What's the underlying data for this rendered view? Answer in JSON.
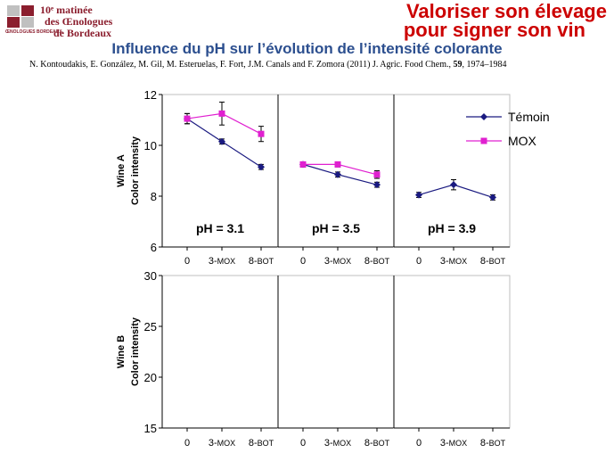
{
  "logo": {
    "line1": "10ᵉ matinée",
    "line2": "des Œnologues",
    "line3": "de Bordeaux",
    "sub": "ŒNOLOGUES BORDEAUX"
  },
  "banner": {
    "line1": "Valoriser son élevage",
    "line2": "pour signer son vin"
  },
  "title": "Influence du pH sur l’évolution de l’intensité colorante",
  "citation": "N. Kontoudakis, E. González, M. Gil, M. Esteruelas, F. Fort, J.M. Canals and F. Zomora (2011) J. Agric. Food Chem., 59, 1974–1984",
  "colors": {
    "temoin": "#1a1a80",
    "mox": "#e020d0"
  },
  "chart_data": [
    {
      "type": "line",
      "row": "Wine A",
      "ylabel_line1": "Wine A",
      "ylabel_line2": "Color intensity",
      "ylim": [
        6,
        12
      ],
      "yticks": [
        6,
        8,
        10,
        12
      ],
      "categories": [
        "0",
        "3-MOX",
        "8-BOT"
      ],
      "legend": [
        "Témoin",
        "MOX"
      ],
      "panels": [
        {
          "label": "pH = 3.1",
          "series": [
            {
              "name": "Témoin",
              "values": [
                11.05,
                10.15,
                9.15
              ],
              "errors": [
                0.2,
                0.1,
                0.1
              ]
            },
            {
              "name": "MOX",
              "values": [
                11.05,
                11.25,
                10.45
              ],
              "errors": [
                0.2,
                0.45,
                0.3
              ]
            }
          ]
        },
        {
          "label": "pH = 3.5",
          "series": [
            {
              "name": "Témoin",
              "values": [
                9.25,
                8.85,
                8.45
              ],
              "errors": [
                0.1,
                0.1,
                0.1
              ]
            },
            {
              "name": "MOX",
              "values": [
                9.25,
                9.25,
                8.85
              ],
              "errors": [
                0.1,
                0.1,
                0.15
              ]
            }
          ]
        },
        {
          "label": "pH = 3.9",
          "series": [
            {
              "name": "Témoin",
              "values": [
                8.05,
                8.45,
                7.95
              ],
              "errors": [
                0.1,
                0.2,
                0.1
              ]
            }
          ]
        }
      ]
    },
    {
      "type": "line",
      "row": "Wine B",
      "ylabel_line1": "Wine B",
      "ylabel_line2": "Color intensity",
      "ylim": [
        15,
        30
      ],
      "yticks": [
        15,
        20,
        25,
        30
      ],
      "categories": [
        "0",
        "3-MOX",
        "8-BOT"
      ],
      "panels": [
        {
          "label": "",
          "series": []
        },
        {
          "label": "",
          "series": []
        },
        {
          "label": "",
          "series": []
        }
      ]
    }
  ]
}
